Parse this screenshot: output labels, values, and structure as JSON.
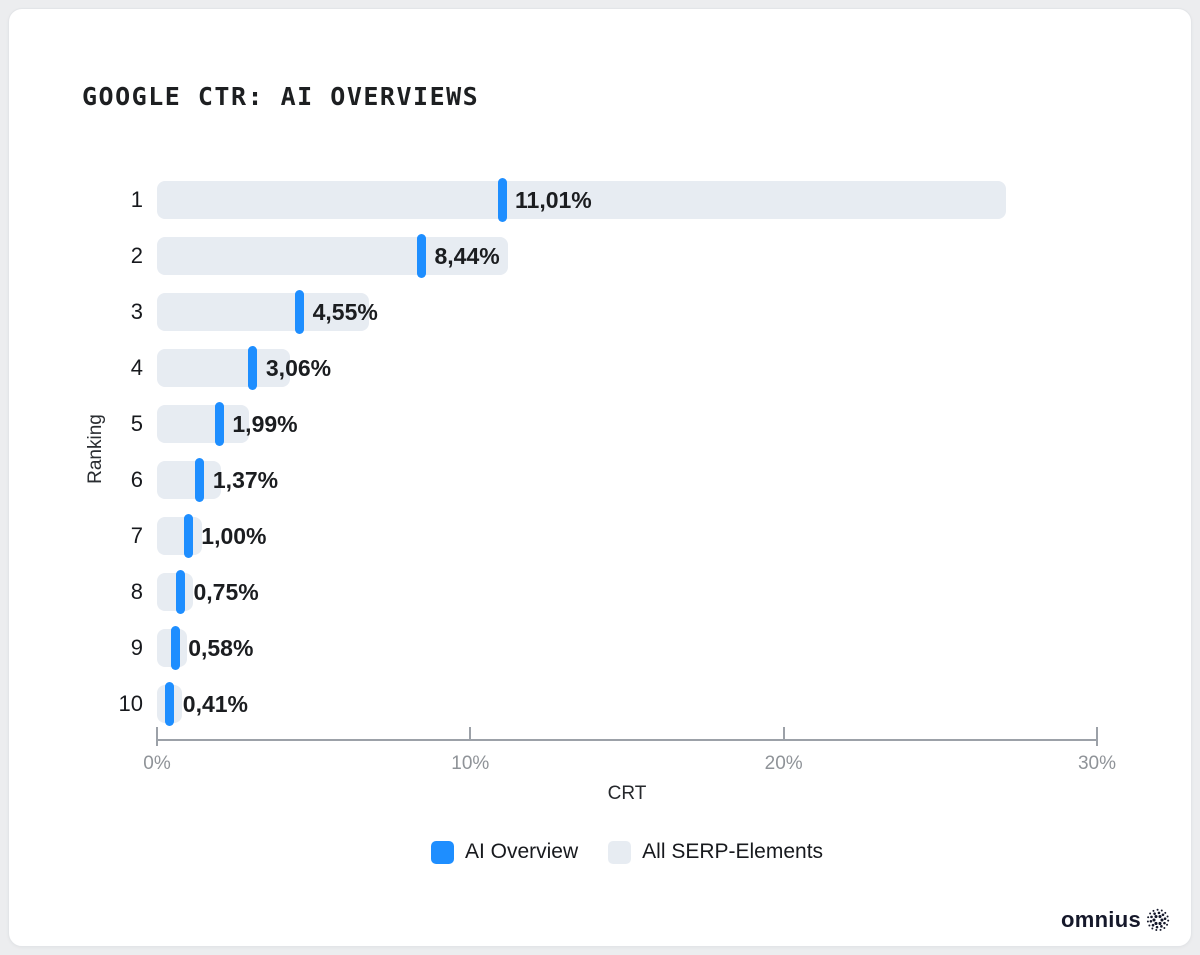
{
  "page": {
    "background_color": "#ecedef",
    "card_background": "#ffffff",
    "text_color": "#17191d",
    "axis_color": "#9ca1a8",
    "tick_label_color": "#8f9398"
  },
  "chart_data": {
    "type": "bar",
    "orientation": "horizontal",
    "title": "GOOGLE CTR: AI OVERVIEWS",
    "xlabel": "CRT",
    "ylabel": "Ranking",
    "xlim": [
      0,
      30
    ],
    "x_ticks": [
      0,
      10,
      20,
      30
    ],
    "x_tick_labels": [
      "0%",
      "10%",
      "20%",
      "30%"
    ],
    "categories": [
      "1",
      "2",
      "3",
      "4",
      "5",
      "6",
      "7",
      "8",
      "9",
      "10"
    ],
    "series": [
      {
        "name": "AI Overview",
        "color": "#1e8eff",
        "values": [
          11.01,
          8.44,
          4.55,
          3.06,
          1.99,
          1.37,
          1.0,
          0.75,
          0.58,
          0.41
        ],
        "value_labels": [
          "11,01%",
          "8,44%",
          "4,55%",
          "3,06%",
          "1,99%",
          "1,37%",
          "1,00%",
          "0,75%",
          "0,58%",
          "0,41%"
        ]
      },
      {
        "name": "All SERP-Elements",
        "color": "#e7ecf2",
        "values": [
          27.1,
          11.2,
          6.75,
          4.25,
          2.95,
          2.05,
          1.43,
          1.16,
          0.95,
          0.79
        ]
      }
    ],
    "legend_position": "bottom",
    "grid": false
  },
  "branding": {
    "logo_text": "omnius",
    "logo_icon": "dotted-sphere"
  }
}
